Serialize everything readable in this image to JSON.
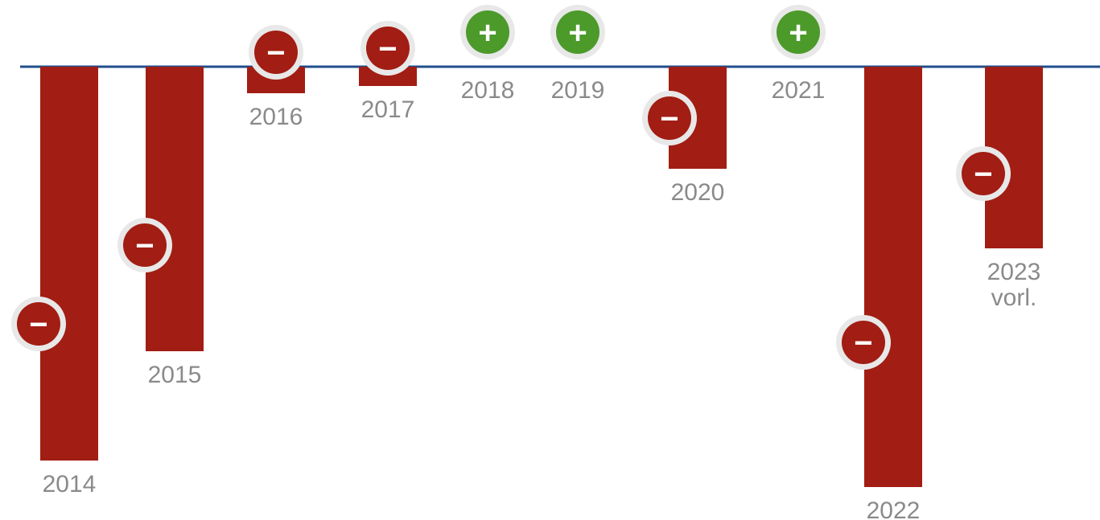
{
  "chart_data": {
    "type": "bar",
    "categories": [
      "2014",
      "2015",
      "2016",
      "2017",
      "2018",
      "2019",
      "2020",
      "2021",
      "2022",
      "2023 vorl."
    ],
    "values": [
      -49,
      -35.4,
      -3.3,
      -2.4,
      0,
      0,
      -12.7,
      0,
      -52.3,
      -22.6
    ],
    "signs": [
      "−",
      "−",
      "−",
      "−",
      "+",
      "+",
      "−",
      "+",
      "−",
      "−"
    ],
    "color": "#a21d13",
    "positive_color": "#4c9a2a",
    "ylim": [
      -56,
      0
    ],
    "grid": false
  }
}
